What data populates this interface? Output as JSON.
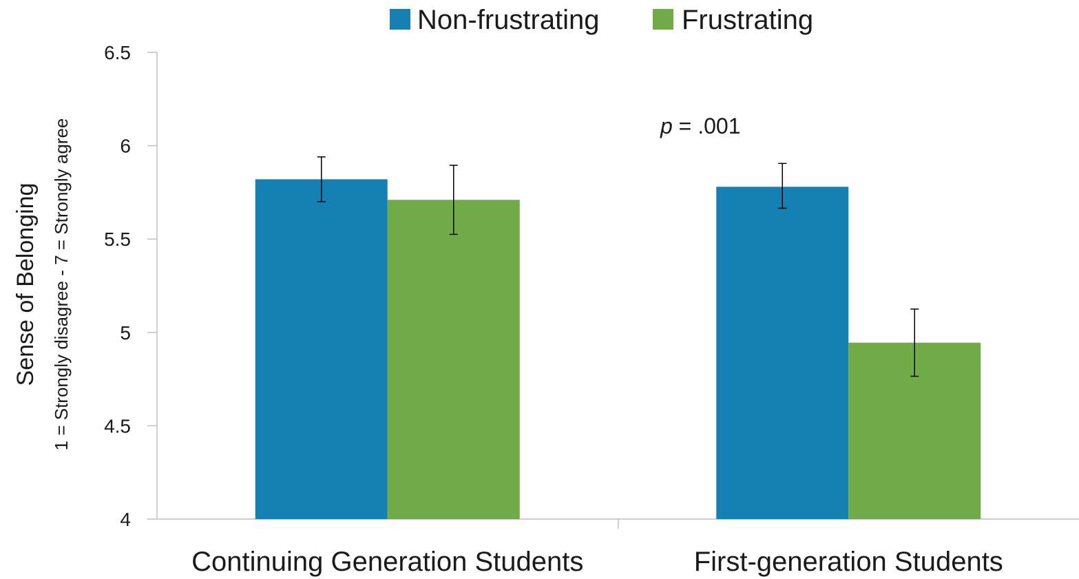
{
  "chart_data": {
    "type": "bar",
    "categories": [
      "Continuing Generation Students",
      "First-generation Students"
    ],
    "series": [
      {
        "name": "Non-frustrating",
        "color": "#1580b3",
        "values": [
          5.82,
          5.78
        ],
        "error": [
          [
            5.7,
            5.94
          ],
          [
            5.665,
            5.905
          ]
        ]
      },
      {
        "name": "Frustrating",
        "color": "#70ab48",
        "values": [
          5.71,
          4.945
        ],
        "error": [
          [
            5.525,
            5.895
          ],
          [
            4.765,
            5.125
          ]
        ]
      }
    ],
    "title": "",
    "xlabel": "",
    "ylabel": "Sense of Belonging",
    "ylabel_sub": "1 = Strongly disagree - 7 = Strongly agree",
    "ylim": [
      4,
      6.5
    ],
    "yticks": [
      "4",
      "4.5",
      "5",
      "5.5",
      "6",
      "6.5"
    ],
    "ytick_values": [
      4,
      4.5,
      5,
      5.5,
      6,
      6.5
    ],
    "legend_position": "top-center",
    "grid": false,
    "annotations": [
      {
        "category_index": 1,
        "prefix_italic": "p",
        "text": " = .001",
        "y": 6.11
      }
    ]
  }
}
